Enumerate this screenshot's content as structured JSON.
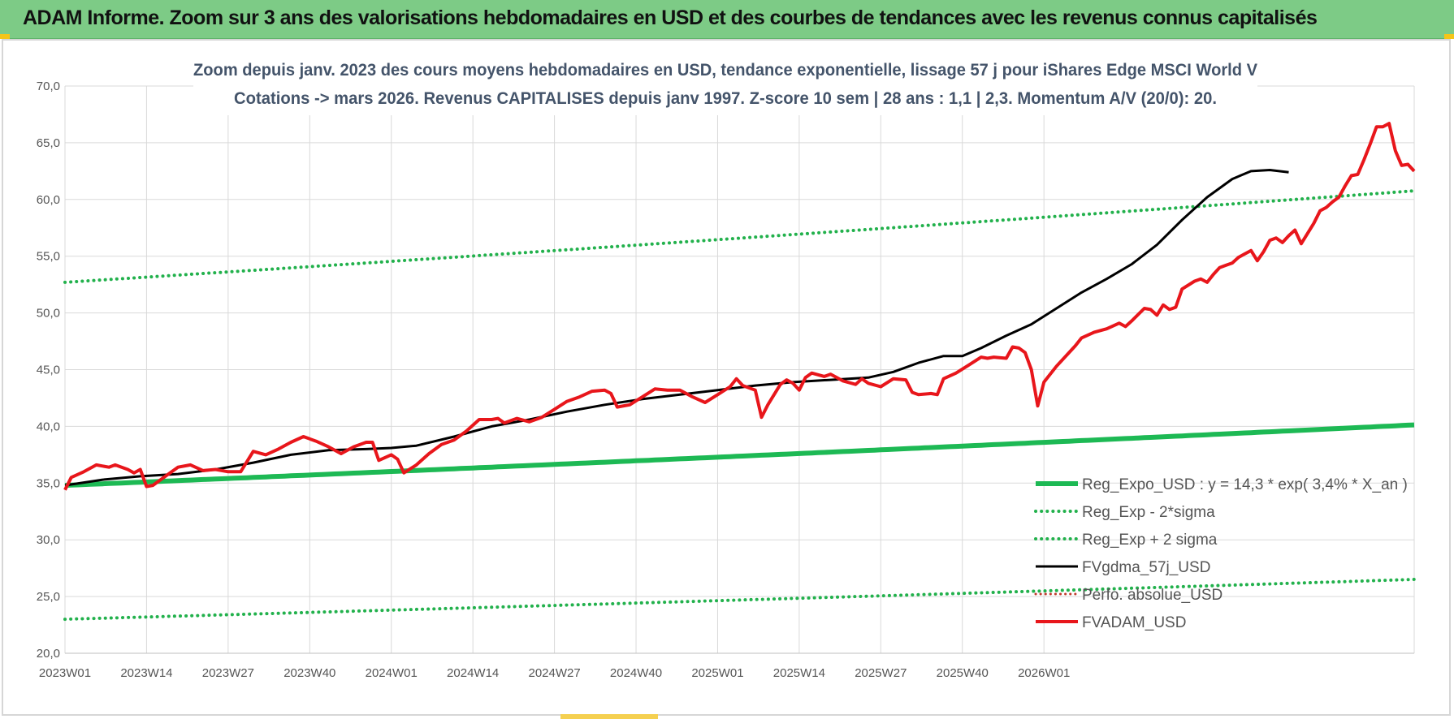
{
  "banner": {
    "title": "ADAM Informe. Zoom sur 3 ans des valorisations hebdomadaires en USD et des courbes de tendances avec les revenus connus capitalisés"
  },
  "colors": {
    "banner_bg": "#7dcb86",
    "red": "#e8161b",
    "black": "#000000",
    "green": "#1db954",
    "dotted_green": "#22b14c",
    "dotted_red": "#c0392b",
    "grid": "#d9d9d9"
  },
  "chart_data": {
    "type": "line",
    "title": "Zoom depuis janv. 2023 des cours moyens hebdomadaires en USD, tendance exponentielle, lissage 57 j pour iShares Edge MSCI World V",
    "subtitle": "Cotations -> mars 2026. Revenus CAPITALISES depuis janv 1997. Z-score 10 sem | 28 ans : 1,1 | 2,3. Momentum A/V (20/0): 20.",
    "xlabel": "",
    "ylabel": "",
    "x_tick_labels": [
      "2023W01",
      "2023W14",
      "2023W27",
      "2023W40",
      "2024W01",
      "2024W14",
      "2024W27",
      "2024W40",
      "2025W01",
      "2025W14",
      "2025W27",
      "2025W40",
      "2026W01"
    ],
    "y_tick_labels": [
      "20,0",
      "25,0",
      "30,0",
      "35,0",
      "40,0",
      "45,0",
      "50,0",
      "55,0",
      "60,0",
      "65,0",
      "70,0"
    ],
    "ylim": [
      20,
      70
    ],
    "xlim_weeks": [
      0,
      168
    ],
    "grid": true,
    "legend_position": "right, lower half",
    "series": [
      {
        "name": "Reg_Expo_USD : y = 14,3 * exp( 3,4% *  X_an )",
        "style": "solid-thick",
        "color": "#1db954",
        "points": [
          [
            0,
            34.8
          ],
          [
            168,
            38.9
          ]
        ]
      },
      {
        "name": "Reg_Exp - 2*sigma",
        "style": "dotted",
        "color": "#22b14c",
        "points": [
          [
            0,
            23.0
          ],
          [
            168,
            25.7
          ]
        ]
      },
      {
        "name": "Reg_Exp + 2 sigma",
        "style": "dotted",
        "color": "#22b14c",
        "points": [
          [
            0,
            52.7
          ],
          [
            168,
            58.9
          ]
        ]
      },
      {
        "name": "FVgdma_57j_USD",
        "style": "solid",
        "color": "#000000",
        "points": [
          [
            0,
            34.8
          ],
          [
            6,
            35.3
          ],
          [
            12,
            35.6
          ],
          [
            18,
            35.8
          ],
          [
            24,
            36.2
          ],
          [
            30,
            36.8
          ],
          [
            36,
            37.5
          ],
          [
            42,
            37.9
          ],
          [
            48,
            38.0
          ],
          [
            52,
            38.1
          ],
          [
            56,
            38.3
          ],
          [
            62,
            39.1
          ],
          [
            68,
            40.0
          ],
          [
            74,
            40.6
          ],
          [
            80,
            41.3
          ],
          [
            86,
            41.9
          ],
          [
            92,
            42.4
          ],
          [
            98,
            42.8
          ],
          [
            104,
            43.2
          ],
          [
            110,
            43.6
          ],
          [
            116,
            43.9
          ],
          [
            122,
            44.1
          ],
          [
            128,
            44.3
          ],
          [
            132,
            44.8
          ],
          [
            136,
            45.6
          ],
          [
            140,
            46.2
          ],
          [
            143,
            46.2
          ],
          [
            146,
            46.9
          ],
          [
            150,
            48.0
          ],
          [
            154,
            49.0
          ],
          [
            158,
            50.4
          ],
          [
            162,
            51.8
          ],
          [
            166,
            53.0
          ],
          [
            170,
            54.3
          ],
          [
            174,
            56.0
          ],
          [
            178,
            58.2
          ],
          [
            182,
            60.2
          ],
          [
            186,
            61.8
          ],
          [
            189,
            62.5
          ],
          [
            192,
            62.6
          ],
          [
            195,
            62.4
          ]
        ]
      },
      {
        "name": "Perfo. absolue_USD",
        "style": "dotted-thin",
        "color": "#c0392b",
        "points": []
      },
      {
        "name": "FVADAM_USD",
        "style": "solid-thick",
        "color": "#e8161b",
        "points": [
          [
            0,
            34.4
          ],
          [
            1,
            35.5
          ],
          [
            3,
            36.0
          ],
          [
            5,
            36.6
          ],
          [
            7,
            36.4
          ],
          [
            8,
            36.6
          ],
          [
            10,
            36.2
          ],
          [
            11,
            35.9
          ],
          [
            12,
            36.2
          ],
          [
            13,
            34.7
          ],
          [
            14,
            34.8
          ],
          [
            16,
            35.6
          ],
          [
            18,
            36.4
          ],
          [
            20,
            36.6
          ],
          [
            22,
            36.1
          ],
          [
            24,
            36.2
          ],
          [
            26,
            36.0
          ],
          [
            28,
            36.0
          ],
          [
            30,
            37.8
          ],
          [
            32,
            37.5
          ],
          [
            34,
            38.0
          ],
          [
            36,
            38.6
          ],
          [
            38,
            39.1
          ],
          [
            40,
            38.7
          ],
          [
            42,
            38.2
          ],
          [
            44,
            37.6
          ],
          [
            46,
            38.2
          ],
          [
            48,
            38.6
          ],
          [
            49,
            38.6
          ],
          [
            50,
            37.0
          ],
          [
            52,
            37.5
          ],
          [
            53,
            37.1
          ],
          [
            54,
            35.9
          ],
          [
            56,
            36.6
          ],
          [
            58,
            37.6
          ],
          [
            60,
            38.4
          ],
          [
            62,
            38.8
          ],
          [
            64,
            39.6
          ],
          [
            66,
            40.6
          ],
          [
            68,
            40.6
          ],
          [
            69,
            40.7
          ],
          [
            70,
            40.3
          ],
          [
            72,
            40.7
          ],
          [
            74,
            40.4
          ],
          [
            76,
            40.8
          ],
          [
            78,
            41.5
          ],
          [
            80,
            42.2
          ],
          [
            82,
            42.6
          ],
          [
            84,
            43.1
          ],
          [
            86,
            43.2
          ],
          [
            87,
            42.9
          ],
          [
            88,
            41.7
          ],
          [
            90,
            41.9
          ],
          [
            92,
            42.6
          ],
          [
            94,
            43.3
          ],
          [
            96,
            43.2
          ],
          [
            98,
            43.2
          ],
          [
            100,
            42.6
          ],
          [
            102,
            42.1
          ],
          [
            104,
            42.8
          ],
          [
            106,
            43.5
          ],
          [
            107,
            44.2
          ],
          [
            108,
            43.6
          ],
          [
            110,
            43.2
          ],
          [
            111,
            40.8
          ],
          [
            112,
            41.9
          ],
          [
            114,
            43.7
          ],
          [
            115,
            44.1
          ],
          [
            116,
            43.8
          ],
          [
            117,
            43.2
          ],
          [
            118,
            44.3
          ],
          [
            119,
            44.7
          ],
          [
            121,
            44.4
          ],
          [
            122,
            44.6
          ],
          [
            124,
            44.0
          ],
          [
            126,
            43.7
          ],
          [
            127,
            44.2
          ],
          [
            128,
            43.8
          ],
          [
            130,
            43.5
          ],
          [
            132,
            44.2
          ],
          [
            134,
            44.1
          ],
          [
            135,
            43.0
          ],
          [
            136,
            42.8
          ],
          [
            138,
            42.9
          ],
          [
            139,
            42.8
          ],
          [
            140,
            44.2
          ],
          [
            142,
            44.7
          ],
          [
            144,
            45.4
          ],
          [
            146,
            46.1
          ],
          [
            147,
            46.0
          ],
          [
            148,
            46.1
          ],
          [
            150,
            46.0
          ],
          [
            151,
            47.0
          ],
          [
            152,
            46.9
          ],
          [
            153,
            46.5
          ],
          [
            154,
            45.0
          ],
          [
            155,
            41.8
          ],
          [
            156,
            43.9
          ],
          [
            158,
            45.3
          ],
          [
            160,
            46.5
          ],
          [
            161,
            47.1
          ],
          [
            162,
            47.8
          ],
          [
            164,
            48.3
          ],
          [
            166,
            48.6
          ],
          [
            168,
            49.1
          ],
          [
            169,
            48.8
          ],
          [
            170,
            49.3
          ],
          [
            172,
            50.4
          ],
          [
            173,
            50.3
          ],
          [
            174,
            49.8
          ],
          [
            175,
            50.7
          ],
          [
            176,
            50.3
          ],
          [
            177,
            50.5
          ],
          [
            178,
            52.1
          ],
          [
            180,
            52.8
          ],
          [
            181,
            53.0
          ],
          [
            182,
            52.7
          ],
          [
            183,
            53.4
          ],
          [
            184,
            54.0
          ],
          [
            185,
            54.2
          ],
          [
            186,
            54.4
          ],
          [
            187,
            54.9
          ],
          [
            188,
            55.2
          ],
          [
            189,
            55.5
          ],
          [
            190,
            54.6
          ],
          [
            191,
            55.4
          ],
          [
            192,
            56.4
          ],
          [
            193,
            56.6
          ],
          [
            194,
            56.2
          ],
          [
            195,
            56.8
          ],
          [
            196,
            57.3
          ],
          [
            197,
            56.1
          ],
          [
            198,
            57.0
          ],
          [
            199,
            57.9
          ],
          [
            200,
            59.0
          ],
          [
            201,
            59.3
          ],
          [
            202,
            59.8
          ],
          [
            203,
            60.2
          ],
          [
            204,
            61.2
          ],
          [
            205,
            62.1
          ],
          [
            206,
            62.2
          ],
          [
            207,
            63.5
          ],
          [
            208,
            64.9
          ],
          [
            209,
            66.4
          ],
          [
            210,
            66.4
          ],
          [
            211,
            66.7
          ],
          [
            212,
            64.3
          ],
          [
            213,
            63.0
          ],
          [
            214,
            63.1
          ],
          [
            215,
            62.5
          ]
        ]
      }
    ]
  }
}
